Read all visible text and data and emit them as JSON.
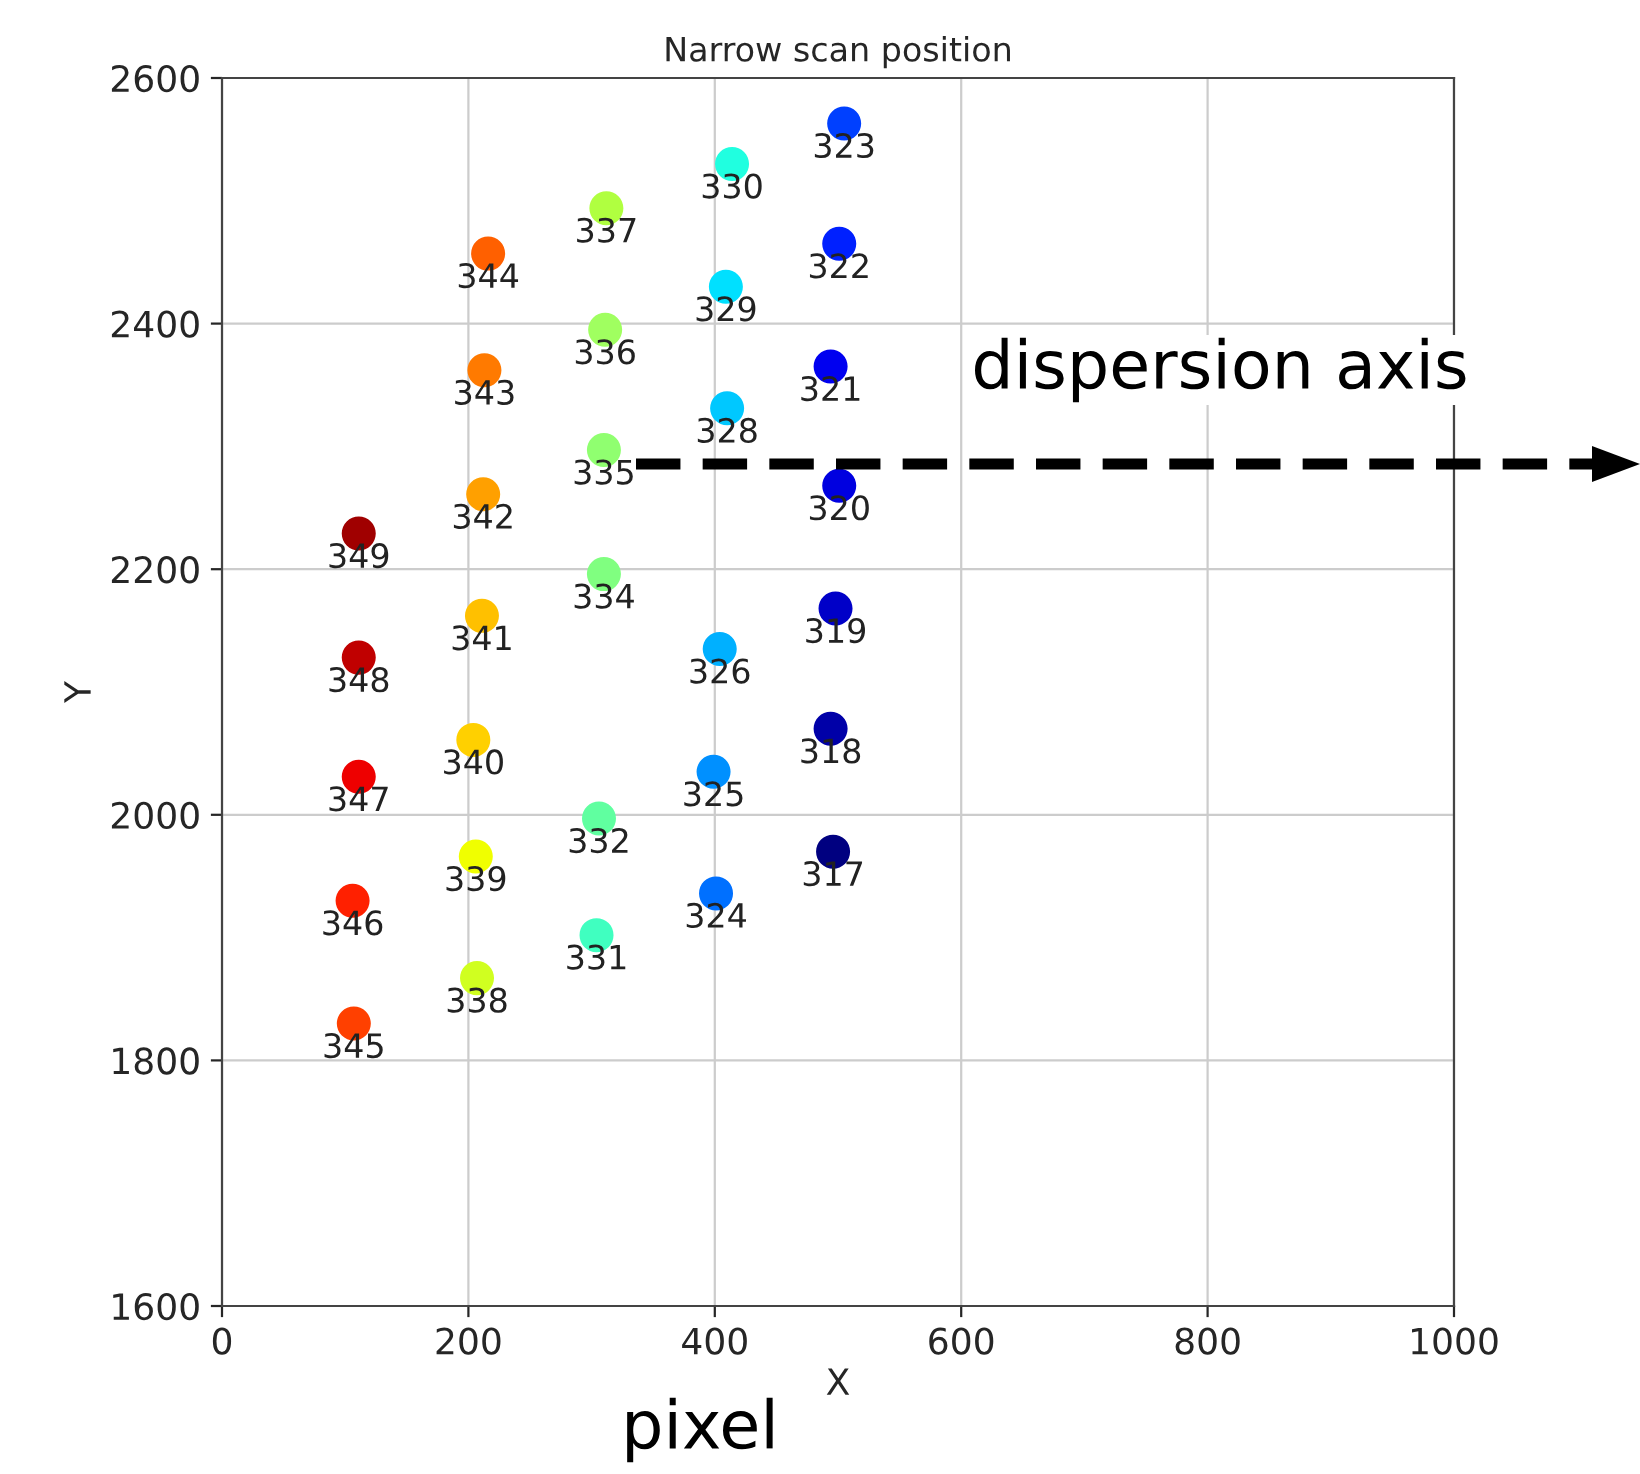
{
  "chart_data": {
    "type": "scatter",
    "title": "Narrow scan position",
    "xlabel": "X",
    "ylabel": "Y",
    "xlim": [
      0,
      1000
    ],
    "ylim": [
      1600,
      2600
    ],
    "xticks": [
      0,
      200,
      400,
      600,
      800,
      1000
    ],
    "yticks": [
      1600,
      1800,
      2000,
      2200,
      2400,
      2600
    ],
    "grid": true,
    "marker": "circle",
    "series": [
      {
        "x": [
          496,
          494,
          498,
          501,
          494,
          501,
          505,
          401,
          399,
          404,
          410,
          409,
          414,
          304,
          306,
          310,
          310,
          311,
          312,
          207,
          206,
          204,
          211,
          212,
          213,
          216,
          107,
          106,
          111,
          111,
          111
        ],
        "values": [
          1970,
          2070,
          2168,
          2268,
          2365,
          2465,
          2563,
          1936,
          2035,
          2135,
          2331,
          2430,
          2530,
          1902,
          1997,
          2196,
          2297,
          2395,
          2494,
          1867,
          1966,
          2061,
          2162,
          2261,
          2362,
          2457,
          1830,
          1930,
          2031,
          2128,
          2229
        ],
        "colors": [
          "#000080",
          "#0000a8",
          "#0000c8",
          "#0000e0",
          "#0000f0",
          "#0020ff",
          "#0040ff",
          "#0070ff",
          "#0090ff",
          "#00b0ff",
          "#00c8ff",
          "#00e0ff",
          "#20ffe0",
          "#40ffc0",
          "#60ffa0",
          "#80ff80",
          "#90ff70",
          "#a0ff60",
          "#b0ff40",
          "#d0ff20",
          "#f0ff00",
          "#ffd000",
          "#ffc000",
          "#ffa000",
          "#ff7a00",
          "#ff6000",
          "#ff4000",
          "#ff2000",
          "#ee0000",
          "#c00000",
          "#a00000"
        ]
      }
    ],
    "annotations": [
      {
        "text": "317",
        "x": 496,
        "y": 1970
      },
      {
        "text": "318",
        "x": 494,
        "y": 2070
      },
      {
        "text": "319",
        "x": 498,
        "y": 2168
      },
      {
        "text": "320",
        "x": 501,
        "y": 2268
      },
      {
        "text": "321",
        "x": 494,
        "y": 2365
      },
      {
        "text": "322",
        "x": 501,
        "y": 2465
      },
      {
        "text": "323",
        "x": 505,
        "y": 2563
      },
      {
        "text": "324",
        "x": 401,
        "y": 1936
      },
      {
        "text": "325",
        "x": 399,
        "y": 2035
      },
      {
        "text": "326",
        "x": 404,
        "y": 2135
      },
      {
        "text": "328",
        "x": 410,
        "y": 2331
      },
      {
        "text": "329",
        "x": 409,
        "y": 2430
      },
      {
        "text": "330",
        "x": 414,
        "y": 2530
      },
      {
        "text": "331",
        "x": 304,
        "y": 1902
      },
      {
        "text": "332",
        "x": 306,
        "y": 1997
      },
      {
        "text": "334",
        "x": 310,
        "y": 2196
      },
      {
        "text": "335",
        "x": 310,
        "y": 2297
      },
      {
        "text": "336",
        "x": 311,
        "y": 2395
      },
      {
        "text": "337",
        "x": 312,
        "y": 2494
      },
      {
        "text": "338",
        "x": 207,
        "y": 1867
      },
      {
        "text": "339",
        "x": 206,
        "y": 1966
      },
      {
        "text": "340",
        "x": 204,
        "y": 2061
      },
      {
        "text": "341",
        "x": 211,
        "y": 2162
      },
      {
        "text": "342",
        "x": 212,
        "y": 2261
      },
      {
        "text": "343",
        "x": 213,
        "y": 2362
      },
      {
        "text": "344",
        "x": 216,
        "y": 2457
      },
      {
        "text": "345",
        "x": 107,
        "y": 1830
      },
      {
        "text": "346",
        "x": 106,
        "y": 1930
      },
      {
        "text": "347",
        "x": 111,
        "y": 2031
      },
      {
        "text": "348",
        "x": 111,
        "y": 2128
      },
      {
        "text": "349",
        "x": 111,
        "y": 2229
      },
      "dispersion axis",
      "pixel"
    ]
  }
}
